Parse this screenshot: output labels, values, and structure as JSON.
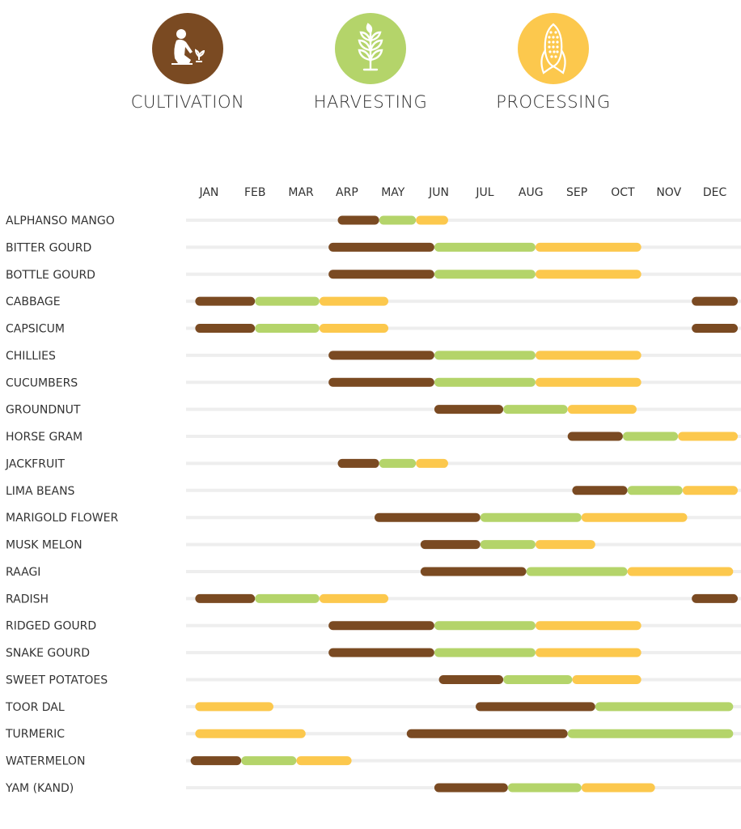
{
  "legend": {
    "cultivation": {
      "label": "CULTIVATION",
      "color": "#7a4a22",
      "icon": "gardener-icon"
    },
    "harvesting": {
      "label": "HARVESTING",
      "color": "#b4d46a",
      "icon": "wheat-icon"
    },
    "processing": {
      "label": "PROCESSING",
      "color": "#fcc84d",
      "icon": "corn-icon"
    }
  },
  "chart_data": {
    "type": "gantt",
    "x": {
      "labels": [
        "JAN",
        "FEB",
        "MAR",
        "ARP",
        "MAY",
        "JUN",
        "JUL",
        "AUG",
        "SEP",
        "OCT",
        "NOV",
        "DEC"
      ],
      "range": [
        0,
        12
      ],
      "unit": "month"
    },
    "phase_colors": {
      "cultivation": "#7a4a22",
      "harvesting": "#b4d46a",
      "processing": "#fcc84d"
    },
    "track_color": "#eeeeee",
    "rows": [
      {
        "name": "ALPHANSO MANGO",
        "segments": [
          {
            "phase": "cultivation",
            "start": 3.3,
            "end": 4.2
          },
          {
            "phase": "harvesting",
            "start": 4.2,
            "end": 5.0
          },
          {
            "phase": "processing",
            "start": 5.0,
            "end": 5.7
          }
        ]
      },
      {
        "name": "BITTER GOURD",
        "segments": [
          {
            "phase": "cultivation",
            "start": 3.1,
            "end": 5.4
          },
          {
            "phase": "harvesting",
            "start": 5.4,
            "end": 7.6
          },
          {
            "phase": "processing",
            "start": 7.6,
            "end": 9.9
          }
        ]
      },
      {
        "name": "BOTTLE GOURD",
        "segments": [
          {
            "phase": "cultivation",
            "start": 3.1,
            "end": 5.4
          },
          {
            "phase": "harvesting",
            "start": 5.4,
            "end": 7.6
          },
          {
            "phase": "processing",
            "start": 7.6,
            "end": 9.9
          }
        ]
      },
      {
        "name": "CABBAGE",
        "segments": [
          {
            "phase": "cultivation",
            "start": 0.2,
            "end": 1.5
          },
          {
            "phase": "harvesting",
            "start": 1.5,
            "end": 2.9
          },
          {
            "phase": "processing",
            "start": 2.9,
            "end": 4.4
          },
          {
            "phase": "cultivation",
            "start": 11.0,
            "end": 12.0
          }
        ]
      },
      {
        "name": "CAPSICUM",
        "segments": [
          {
            "phase": "cultivation",
            "start": 0.2,
            "end": 1.5
          },
          {
            "phase": "harvesting",
            "start": 1.5,
            "end": 2.9
          },
          {
            "phase": "processing",
            "start": 2.9,
            "end": 4.4
          },
          {
            "phase": "cultivation",
            "start": 11.0,
            "end": 12.0
          }
        ]
      },
      {
        "name": "CHILLIES",
        "segments": [
          {
            "phase": "cultivation",
            "start": 3.1,
            "end": 5.4
          },
          {
            "phase": "harvesting",
            "start": 5.4,
            "end": 7.6
          },
          {
            "phase": "processing",
            "start": 7.6,
            "end": 9.9
          }
        ]
      },
      {
        "name": "CUCUMBERS",
        "segments": [
          {
            "phase": "cultivation",
            "start": 3.1,
            "end": 5.4
          },
          {
            "phase": "harvesting",
            "start": 5.4,
            "end": 7.6
          },
          {
            "phase": "processing",
            "start": 7.6,
            "end": 9.9
          }
        ]
      },
      {
        "name": "GROUNDNUT",
        "segments": [
          {
            "phase": "cultivation",
            "start": 5.4,
            "end": 6.9
          },
          {
            "phase": "harvesting",
            "start": 6.9,
            "end": 8.3
          },
          {
            "phase": "processing",
            "start": 8.3,
            "end": 9.8
          }
        ]
      },
      {
        "name": "HORSE GRAM",
        "segments": [
          {
            "phase": "cultivation",
            "start": 8.3,
            "end": 9.5
          },
          {
            "phase": "harvesting",
            "start": 9.5,
            "end": 10.7
          },
          {
            "phase": "processing",
            "start": 10.7,
            "end": 12.0
          }
        ]
      },
      {
        "name": "JACKFRUIT",
        "segments": [
          {
            "phase": "cultivation",
            "start": 3.3,
            "end": 4.2
          },
          {
            "phase": "harvesting",
            "start": 4.2,
            "end": 5.0
          },
          {
            "phase": "processing",
            "start": 5.0,
            "end": 5.7
          }
        ]
      },
      {
        "name": "LIMA BEANS",
        "segments": [
          {
            "phase": "cultivation",
            "start": 8.4,
            "end": 9.6
          },
          {
            "phase": "harvesting",
            "start": 9.6,
            "end": 10.8
          },
          {
            "phase": "processing",
            "start": 10.8,
            "end": 12.0
          }
        ]
      },
      {
        "name": "MARIGOLD FLOWER",
        "segments": [
          {
            "phase": "cultivation",
            "start": 4.1,
            "end": 6.4
          },
          {
            "phase": "harvesting",
            "start": 6.4,
            "end": 8.6
          },
          {
            "phase": "processing",
            "start": 8.6,
            "end": 10.9
          }
        ]
      },
      {
        "name": "MUSK MELON",
        "segments": [
          {
            "phase": "cultivation",
            "start": 5.1,
            "end": 6.4
          },
          {
            "phase": "harvesting",
            "start": 6.4,
            "end": 7.6
          },
          {
            "phase": "processing",
            "start": 7.6,
            "end": 8.9
          }
        ]
      },
      {
        "name": "RAAGI",
        "segments": [
          {
            "phase": "cultivation",
            "start": 5.1,
            "end": 7.4
          },
          {
            "phase": "harvesting",
            "start": 7.4,
            "end": 9.6
          },
          {
            "phase": "processing",
            "start": 9.6,
            "end": 11.9
          }
        ]
      },
      {
        "name": "RADISH",
        "segments": [
          {
            "phase": "cultivation",
            "start": 0.2,
            "end": 1.5
          },
          {
            "phase": "harvesting",
            "start": 1.5,
            "end": 2.9
          },
          {
            "phase": "processing",
            "start": 2.9,
            "end": 4.4
          },
          {
            "phase": "cultivation",
            "start": 11.0,
            "end": 12.0
          }
        ]
      },
      {
        "name": "RIDGED GOURD",
        "segments": [
          {
            "phase": "cultivation",
            "start": 3.1,
            "end": 5.4
          },
          {
            "phase": "harvesting",
            "start": 5.4,
            "end": 7.6
          },
          {
            "phase": "processing",
            "start": 7.6,
            "end": 9.9
          }
        ]
      },
      {
        "name": "SNAKE GOURD",
        "segments": [
          {
            "phase": "cultivation",
            "start": 3.1,
            "end": 5.4
          },
          {
            "phase": "harvesting",
            "start": 5.4,
            "end": 7.6
          },
          {
            "phase": "processing",
            "start": 7.6,
            "end": 9.9
          }
        ]
      },
      {
        "name": "SWEET POTATOES",
        "segments": [
          {
            "phase": "cultivation",
            "start": 5.5,
            "end": 6.9
          },
          {
            "phase": "harvesting",
            "start": 6.9,
            "end": 8.4
          },
          {
            "phase": "processing",
            "start": 8.4,
            "end": 9.9
          }
        ]
      },
      {
        "name": "TOOR DAL",
        "segments": [
          {
            "phase": "processing",
            "start": 0.2,
            "end": 1.9
          },
          {
            "phase": "cultivation",
            "start": 6.3,
            "end": 8.9
          },
          {
            "phase": "harvesting",
            "start": 8.9,
            "end": 11.9
          }
        ]
      },
      {
        "name": "TURMERIC",
        "segments": [
          {
            "phase": "processing",
            "start": 0.2,
            "end": 2.6
          },
          {
            "phase": "cultivation",
            "start": 4.8,
            "end": 8.3
          },
          {
            "phase": "harvesting",
            "start": 8.3,
            "end": 11.9
          }
        ]
      },
      {
        "name": "WATERMELON",
        "segments": [
          {
            "phase": "cultivation",
            "start": 0.1,
            "end": 1.2
          },
          {
            "phase": "harvesting",
            "start": 1.2,
            "end": 2.4
          },
          {
            "phase": "processing",
            "start": 2.4,
            "end": 3.6
          }
        ]
      },
      {
        "name": "YAM (KAND)",
        "segments": [
          {
            "phase": "cultivation",
            "start": 5.4,
            "end": 7.0
          },
          {
            "phase": "harvesting",
            "start": 7.0,
            "end": 8.6
          },
          {
            "phase": "processing",
            "start": 8.6,
            "end": 10.2
          }
        ]
      }
    ]
  }
}
